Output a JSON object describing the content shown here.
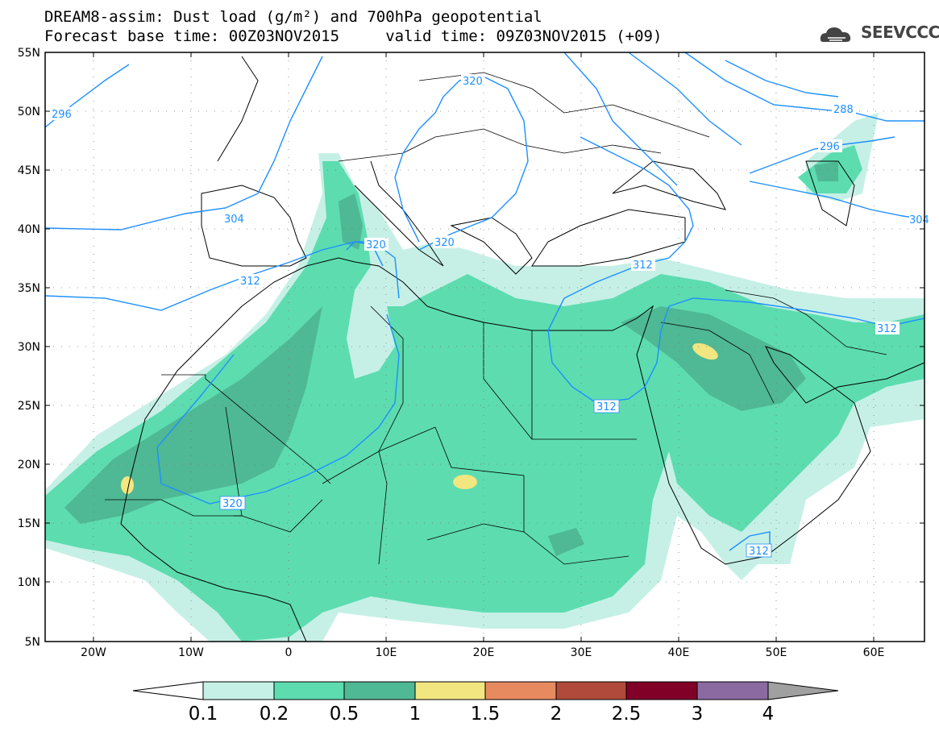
{
  "title": {
    "line1": "DREAM8-assim: Dust load (g/m²) and 700hPa geopotential",
    "line2": "Forecast base time: 00Z03NOV2015     valid time: 09Z03NOV2015 (+09)"
  },
  "logo": {
    "text": "SEEVCCC",
    "icon": "cloud-icon"
  },
  "axes": {
    "y_labels": [
      "55N",
      "50N",
      "45N",
      "40N",
      "35N",
      "30N",
      "25N",
      "20N",
      "15N",
      "10N",
      "5N"
    ],
    "x_labels": [
      "20W",
      "10W",
      "0",
      "10E",
      "20E",
      "30E",
      "40E",
      "50E",
      "60E"
    ]
  },
  "contour_labels": {
    "c296a": "296",
    "c296b": "296",
    "c288": "288",
    "c304a": "304",
    "c304b": "304",
    "c320a": "320",
    "c320b": "320",
    "c320c": "320",
    "c320d": "320",
    "c312a": "312",
    "c312b": "312",
    "c312c": "312",
    "c312d": "312",
    "c312e": "312"
  },
  "colorbar": {
    "labels": [
      "0.1",
      "0.2",
      "0.5",
      "1",
      "1.5",
      "2",
      "2.5",
      "3",
      "4"
    ],
    "colors": [
      "#c6f0e6",
      "#5ddcb0",
      "#4fb894",
      "#f2e680",
      "#e88a60",
      "#b04a3a",
      "#800028",
      "#8a6aa0",
      "#a0a0a0"
    ]
  },
  "colors": {
    "dust_01": "#c6f0e6",
    "dust_02": "#5ddcb0",
    "dust_05": "#4fb894",
    "dust_1": "#f2e680",
    "geopotential": "#1e90ff"
  }
}
